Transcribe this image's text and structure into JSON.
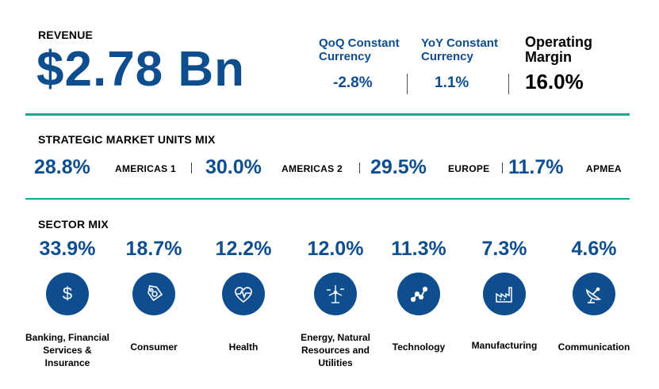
{
  "revenue": {
    "title": "REVENUE",
    "value": "$2.78 Bn"
  },
  "kpis": {
    "qoq": {
      "label": "QoQ Constant Currency",
      "value": "-2.8%"
    },
    "yoy": {
      "label": "YoY Constant Currency",
      "value": "1.1%"
    },
    "operating_margin": {
      "label": "Operating Margin",
      "value": "16.0%"
    }
  },
  "smu": {
    "title": "STRATEGIC MARKET UNITS MIX",
    "items": [
      {
        "pct": "28.8%",
        "name": "AMERICAS 1"
      },
      {
        "pct": "30.0%",
        "name": "AMERICAS 2"
      },
      {
        "pct": "29.5%",
        "name": "EUROPE"
      },
      {
        "pct": "11.7%",
        "name": "APMEA"
      }
    ]
  },
  "sector": {
    "title": "SECTOR MIX",
    "items": [
      {
        "pct": "33.9%",
        "name": "Banking, Financial Services & Insurance",
        "icon": "dollar-icon"
      },
      {
        "pct": "18.7%",
        "name": "Consumer",
        "icon": "price-tag-icon"
      },
      {
        "pct": "12.2%",
        "name": "Health",
        "icon": "heart-pulse-icon"
      },
      {
        "pct": "12.0%",
        "name": "Energy, Natural Resources and Utilities",
        "icon": "wind-turbine-icon"
      },
      {
        "pct": "11.3%",
        "name": "Technology",
        "icon": "network-nodes-icon"
      },
      {
        "pct": "7.3%",
        "name": "Manufacturing",
        "icon": "factory-icon"
      },
      {
        "pct": "4.6%",
        "name": "Communication",
        "icon": "satellite-dish-icon"
      }
    ]
  },
  "colors": {
    "primary_blue": "#0e4e8f",
    "rule_teal": "#1aa79a"
  }
}
